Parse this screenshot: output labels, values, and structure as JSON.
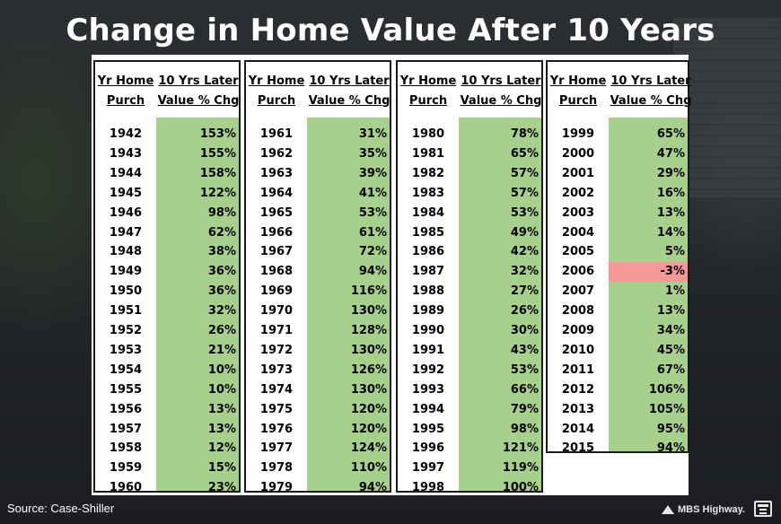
{
  "title": "Change in Home Value After 10 Years",
  "headers": {
    "year_line1": "Yr Home",
    "year_line2": "Purch",
    "value_line1": "10 Yrs Later",
    "value_line2": "Value % Chg"
  },
  "tables": [
    {
      "rows": [
        {
          "year": "1942",
          "pct": "153%"
        },
        {
          "year": "1943",
          "pct": "155%"
        },
        {
          "year": "1944",
          "pct": "158%"
        },
        {
          "year": "1945",
          "pct": "122%"
        },
        {
          "year": "1946",
          "pct": "98%"
        },
        {
          "year": "1947",
          "pct": "62%"
        },
        {
          "year": "1948",
          "pct": "38%"
        },
        {
          "year": "1949",
          "pct": "36%"
        },
        {
          "year": "1950",
          "pct": "36%"
        },
        {
          "year": "1951",
          "pct": "32%"
        },
        {
          "year": "1952",
          "pct": "26%"
        },
        {
          "year": "1953",
          "pct": "21%"
        },
        {
          "year": "1954",
          "pct": "10%"
        },
        {
          "year": "1955",
          "pct": "10%"
        },
        {
          "year": "1956",
          "pct": "13%"
        },
        {
          "year": "1957",
          "pct": "13%"
        },
        {
          "year": "1958",
          "pct": "12%"
        },
        {
          "year": "1959",
          "pct": "15%"
        },
        {
          "year": "1960",
          "pct": "23%"
        }
      ]
    },
    {
      "rows": [
        {
          "year": "1961",
          "pct": "31%"
        },
        {
          "year": "1962",
          "pct": "35%"
        },
        {
          "year": "1963",
          "pct": "39%"
        },
        {
          "year": "1964",
          "pct": "41%"
        },
        {
          "year": "1965",
          "pct": "53%"
        },
        {
          "year": "1966",
          "pct": "61%"
        },
        {
          "year": "1967",
          "pct": "72%"
        },
        {
          "year": "1968",
          "pct": "94%"
        },
        {
          "year": "1969",
          "pct": "116%"
        },
        {
          "year": "1970",
          "pct": "130%"
        },
        {
          "year": "1971",
          "pct": "128%"
        },
        {
          "year": "1972",
          "pct": "130%"
        },
        {
          "year": "1973",
          "pct": "126%"
        },
        {
          "year": "1974",
          "pct": "130%"
        },
        {
          "year": "1975",
          "pct": "120%"
        },
        {
          "year": "1976",
          "pct": "120%"
        },
        {
          "year": "1977",
          "pct": "124%"
        },
        {
          "year": "1978",
          "pct": "110%"
        },
        {
          "year": "1979",
          "pct": "94%"
        }
      ]
    },
    {
      "rows": [
        {
          "year": "1980",
          "pct": "78%"
        },
        {
          "year": "1981",
          "pct": "65%"
        },
        {
          "year": "1982",
          "pct": "57%"
        },
        {
          "year": "1983",
          "pct": "57%"
        },
        {
          "year": "1984",
          "pct": "53%"
        },
        {
          "year": "1985",
          "pct": "49%"
        },
        {
          "year": "1986",
          "pct": "42%"
        },
        {
          "year": "1987",
          "pct": "32%"
        },
        {
          "year": "1988",
          "pct": "27%"
        },
        {
          "year": "1989",
          "pct": "26%"
        },
        {
          "year": "1990",
          "pct": "30%"
        },
        {
          "year": "1991",
          "pct": "43%"
        },
        {
          "year": "1992",
          "pct": "53%"
        },
        {
          "year": "1993",
          "pct": "66%"
        },
        {
          "year": "1994",
          "pct": "79%"
        },
        {
          "year": "1995",
          "pct": "98%"
        },
        {
          "year": "1996",
          "pct": "121%"
        },
        {
          "year": "1997",
          "pct": "119%"
        },
        {
          "year": "1998",
          "pct": "100%"
        }
      ]
    },
    {
      "rows": [
        {
          "year": "1999",
          "pct": "65%"
        },
        {
          "year": "2000",
          "pct": "47%"
        },
        {
          "year": "2001",
          "pct": "29%"
        },
        {
          "year": "2002",
          "pct": "16%"
        },
        {
          "year": "2003",
          "pct": "13%"
        },
        {
          "year": "2004",
          "pct": "14%"
        },
        {
          "year": "2005",
          "pct": "5%"
        },
        {
          "year": "2006",
          "pct": "-3%",
          "negative": true
        },
        {
          "year": "2007",
          "pct": "1%"
        },
        {
          "year": "2008",
          "pct": "13%"
        },
        {
          "year": "2009",
          "pct": "34%"
        },
        {
          "year": "2010",
          "pct": "45%"
        },
        {
          "year": "2011",
          "pct": "67%"
        },
        {
          "year": "2012",
          "pct": "106%"
        },
        {
          "year": "2013",
          "pct": "105%"
        },
        {
          "year": "2014",
          "pct": "95%"
        },
        {
          "year": "2015",
          "pct": "94%"
        }
      ]
    }
  ],
  "colors": {
    "positive": "#a8d08d",
    "negative": "#f4999a"
  },
  "source": "Source: Case-Shiller",
  "brand": "MBS Highway."
}
